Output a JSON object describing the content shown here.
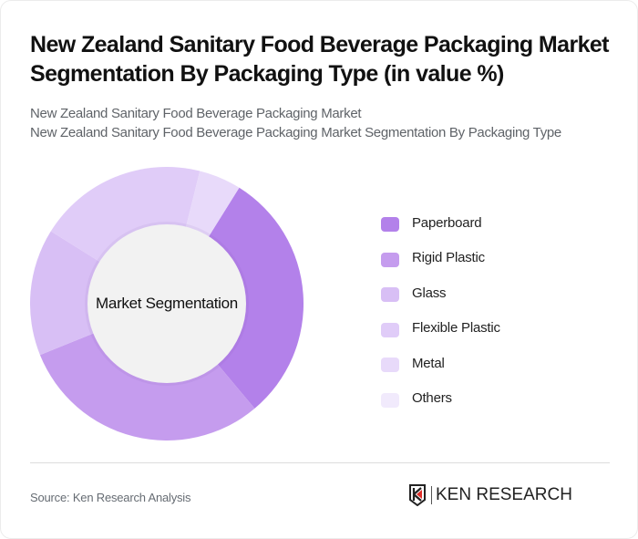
{
  "header": {
    "title": "New Zealand Sanitary Food Beverage Packaging Market Segmentation By Packaging Type (in value %)",
    "subtitle_line1": "New Zealand Sanitary Food Beverage Packaging Market",
    "subtitle_line2": "New Zealand Sanitary Food Beverage Packaging Market Segmentation By Packaging Type"
  },
  "chart": {
    "center_label": "Market Segmentation"
  },
  "legend": [
    {
      "label": "Paperboard",
      "color": "#B381EA"
    },
    {
      "label": "Rigid Plastic",
      "color": "#C59CEE"
    },
    {
      "label": "Glass",
      "color": "#D8BFF5"
    },
    {
      "label": "Flexible Plastic",
      "color": "#E0CCF8"
    },
    {
      "label": "Metal",
      "color": "#E8DAFA"
    },
    {
      "label": "Others",
      "color": "#F1EAFC"
    }
  ],
  "footer": {
    "source": "Source: Ken Research Analysis",
    "logo_text": "KEN RESEARCH"
  },
  "chart_data": {
    "type": "pie",
    "variant": "donut",
    "title": "New Zealand Sanitary Food Beverage Packaging Market Segmentation By Packaging Type (in value %)",
    "center_label": "Market Segmentation",
    "categories": [
      "Paperboard",
      "Rigid Plastic",
      "Glass",
      "Flexible Plastic",
      "Metal",
      "Others"
    ],
    "values": [
      30,
      30,
      15,
      20,
      5,
      0
    ],
    "colors": [
      "#B381EA",
      "#C59CEE",
      "#D8BFF5",
      "#E0CCF8",
      "#E8DAFA",
      "#F1EAFC"
    ],
    "start_angle_deg": 32,
    "legend_position": "right"
  }
}
